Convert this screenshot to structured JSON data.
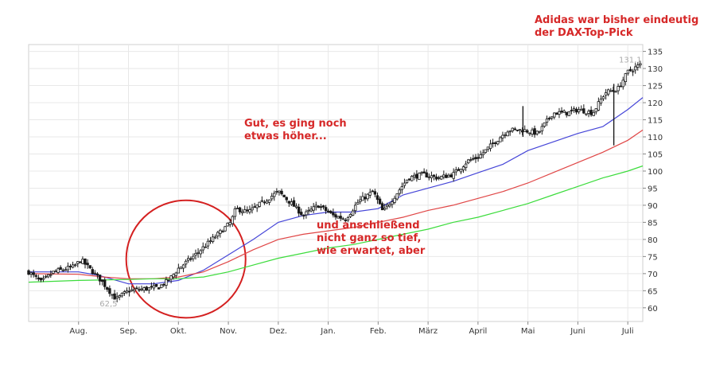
{
  "annotations": {
    "top_right_line1": "Adidas war bisher eindeutig",
    "top_right_line2": "der DAX-Top-Pick",
    "middle_line1": "Gut, es ging noch",
    "middle_line2": "etwas höher...",
    "bottom_line1": "und anschließend",
    "bottom_line2": "nicht ganz so tief,",
    "bottom_line3": "wie erwartet, aber"
  },
  "colors": {
    "annotation": "#d62828",
    "ma_short": "#4646d8",
    "ma_mid": "#e04646",
    "ma_long": "#3cdc3c",
    "candle": "#1a1a1a",
    "grid": "#e8e8e8",
    "circle": "#d42020"
  },
  "chart_data": {
    "type": "candlestick",
    "ylim": [
      56,
      137
    ],
    "y_ticks": [
      60,
      65,
      70,
      75,
      80,
      85,
      90,
      95,
      100,
      105,
      110,
      115,
      120,
      125,
      130,
      135
    ],
    "x_range": [
      0,
      12.3
    ],
    "x_ticks": [
      {
        "label": "Aug.",
        "pos": 1
      },
      {
        "label": "Sep.",
        "pos": 2
      },
      {
        "label": "Okt.",
        "pos": 3
      },
      {
        "label": "Nov.",
        "pos": 4
      },
      {
        "label": "Dez.",
        "pos": 5
      },
      {
        "label": "Jan.",
        "pos": 6
      },
      {
        "label": "Feb.",
        "pos": 7
      },
      {
        "label": "März",
        "pos": 8
      },
      {
        "label": "April",
        "pos": 9
      },
      {
        "label": "Mai",
        "pos": 10
      },
      {
        "label": "Juni",
        "pos": 11
      },
      {
        "label": "Juli",
        "pos": 12
      }
    ],
    "price_path": [
      [
        0.0,
        70.5
      ],
      [
        0.25,
        67.5
      ],
      [
        0.5,
        70.5
      ],
      [
        0.9,
        72
      ],
      [
        1.05,
        74
      ],
      [
        1.25,
        71
      ],
      [
        1.45,
        68
      ],
      [
        1.75,
        62.5
      ],
      [
        2.0,
        65
      ],
      [
        2.3,
        65.5
      ],
      [
        2.6,
        66
      ],
      [
        2.8,
        68
      ],
      [
        3.0,
        71.5
      ],
      [
        3.3,
        75
      ],
      [
        3.6,
        79
      ],
      [
        3.9,
        83
      ],
      [
        4.05,
        85
      ],
      [
        4.15,
        89
      ],
      [
        4.4,
        88
      ],
      [
        4.7,
        91
      ],
      [
        5.0,
        94
      ],
      [
        5.3,
        90
      ],
      [
        5.5,
        87
      ],
      [
        5.8,
        90
      ],
      [
        6.1,
        87
      ],
      [
        6.35,
        86
      ],
      [
        6.6,
        91
      ],
      [
        6.9,
        94
      ],
      [
        7.1,
        88
      ],
      [
        7.3,
        92
      ],
      [
        7.6,
        98
      ],
      [
        7.9,
        99
      ],
      [
        8.2,
        98
      ],
      [
        8.5,
        99
      ],
      [
        8.8,
        103
      ],
      [
        9.0,
        104
      ],
      [
        9.3,
        108
      ],
      [
        9.6,
        112
      ],
      [
        9.9,
        112
      ],
      [
        10.2,
        111
      ],
      [
        10.5,
        117
      ],
      [
        10.8,
        117
      ],
      [
        11.0,
        118
      ],
      [
        11.3,
        117
      ],
      [
        11.55,
        123
      ],
      [
        11.8,
        124
      ],
      [
        12.0,
        129
      ],
      [
        12.25,
        131.1
      ]
    ],
    "volatility_spikes": [
      {
        "x": 11.72,
        "low": 107.5,
        "high": 125.5
      },
      {
        "x": 9.9,
        "low": 110,
        "high": 119
      }
    ],
    "series": [
      {
        "key": "ma_short",
        "color_key": "ma_short",
        "points": [
          [
            0.0,
            70.5
          ],
          [
            1.0,
            70.5
          ],
          [
            1.4,
            69.5
          ],
          [
            2.0,
            67
          ],
          [
            2.5,
            67
          ],
          [
            3.0,
            68
          ],
          [
            3.5,
            71
          ],
          [
            4.0,
            75.5
          ],
          [
            4.5,
            80
          ],
          [
            5.0,
            85
          ],
          [
            5.5,
            87
          ],
          [
            6.0,
            88
          ],
          [
            6.5,
            88
          ],
          [
            7.0,
            89
          ],
          [
            7.5,
            93
          ],
          [
            8.0,
            95
          ],
          [
            8.5,
            97
          ],
          [
            9.0,
            99.5
          ],
          [
            9.5,
            102
          ],
          [
            10.0,
            106
          ],
          [
            10.5,
            108.5
          ],
          [
            11.0,
            111
          ],
          [
            11.5,
            113
          ],
          [
            12.0,
            118
          ],
          [
            12.3,
            121.5
          ]
        ]
      },
      {
        "key": "ma_mid",
        "color_key": "ma_mid",
        "points": [
          [
            0.0,
            70
          ],
          [
            1.0,
            69.8
          ],
          [
            1.5,
            69
          ],
          [
            2.0,
            68.5
          ],
          [
            2.5,
            68.5
          ],
          [
            3.0,
            69
          ],
          [
            3.5,
            70.5
          ],
          [
            4.0,
            73.5
          ],
          [
            4.5,
            77
          ],
          [
            5.0,
            80
          ],
          [
            5.5,
            81.5
          ],
          [
            6.0,
            82.5
          ],
          [
            6.5,
            83.5
          ],
          [
            7.0,
            85
          ],
          [
            7.5,
            86.5
          ],
          [
            8.0,
            88.5
          ],
          [
            8.5,
            90
          ],
          [
            9.0,
            92
          ],
          [
            9.5,
            94
          ],
          [
            10.0,
            96.5
          ],
          [
            10.5,
            99.5
          ],
          [
            11.0,
            102.5
          ],
          [
            11.5,
            105.5
          ],
          [
            12.0,
            109
          ],
          [
            12.3,
            112
          ]
        ]
      },
      {
        "key": "ma_long",
        "color_key": "ma_long",
        "points": [
          [
            0.0,
            67.5
          ],
          [
            1.0,
            68
          ],
          [
            2.0,
            68.3
          ],
          [
            2.5,
            68.5
          ],
          [
            3.0,
            68.5
          ],
          [
            3.5,
            69
          ],
          [
            4.0,
            70.5
          ],
          [
            4.5,
            72.5
          ],
          [
            5.0,
            74.5
          ],
          [
            5.5,
            76
          ],
          [
            6.0,
            77.5
          ],
          [
            6.5,
            78.5
          ],
          [
            7.0,
            80
          ],
          [
            7.5,
            81.5
          ],
          [
            8.0,
            83
          ],
          [
            8.5,
            85
          ],
          [
            9.0,
            86.5
          ],
          [
            9.5,
            88.5
          ],
          [
            10.0,
            90.5
          ],
          [
            10.5,
            93
          ],
          [
            11.0,
            95.5
          ],
          [
            11.5,
            98
          ],
          [
            12.0,
            100
          ],
          [
            12.3,
            101.5
          ]
        ]
      }
    ],
    "price_labels": [
      {
        "text": "131,1",
        "x": 12.05,
        "y": 131.8
      },
      {
        "text": "62,5",
        "x": 1.6,
        "y": 60.4
      }
    ]
  }
}
